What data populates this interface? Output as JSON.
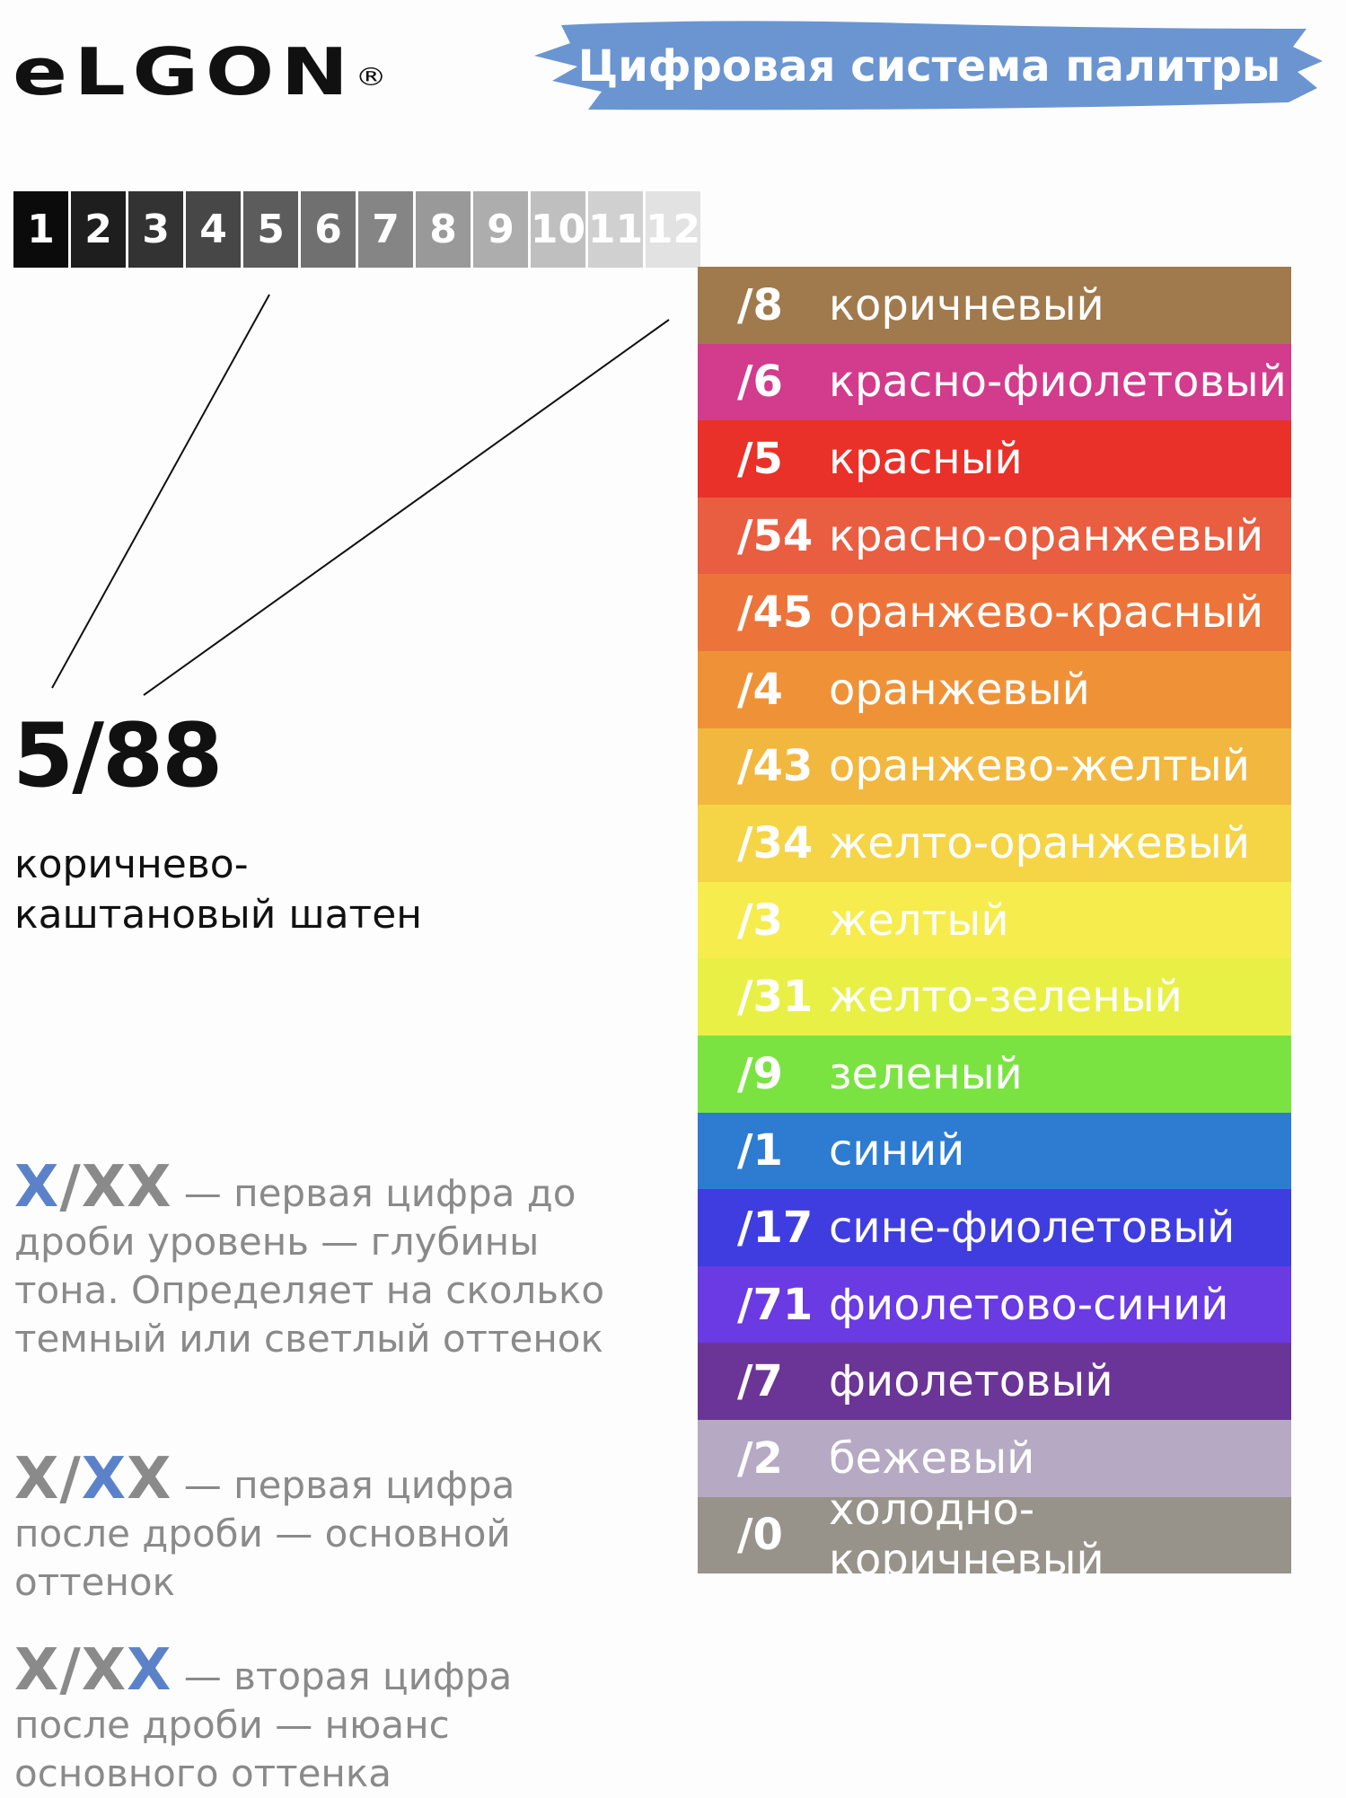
{
  "brand": {
    "name": "eLGON",
    "registered": "®"
  },
  "title": "Цифровая система палитры",
  "colors": {
    "banner": "#6a95d1",
    "accent_blue": "#5b82c9",
    "gray_text": "#8a8a8a"
  },
  "tone_scale": {
    "levels": [
      "1",
      "2",
      "3",
      "4",
      "5",
      "6",
      "7",
      "8",
      "9",
      "10",
      "11",
      "12"
    ],
    "cell_colors": [
      "#0b0b0b",
      "#1e1e1e",
      "#333333",
      "#474747",
      "#5c5c5c",
      "#707070",
      "#858585",
      "#999999",
      "#adadad",
      "#bfbfbf",
      "#d0d0d0",
      "#e2e2e2"
    ]
  },
  "example": {
    "code": "5/88",
    "description_line1": "коричнево-",
    "description_line2": "каштановый шатен"
  },
  "palette": [
    {
      "code": "/8",
      "name": "коричневый",
      "color": "#a07a4c"
    },
    {
      "code": "/6",
      "name": "красно-фиолетовый",
      "color": "#d33b8c"
    },
    {
      "code": "/5",
      "name": "красный",
      "color": "#e93029"
    },
    {
      "code": "/54",
      "name": "красно-оранжевый",
      "color": "#e95d41"
    },
    {
      "code": "/45",
      "name": "оранжево-красный",
      "color": "#ec743a"
    },
    {
      "code": "/4",
      "name": "оранжевый",
      "color": "#ef9237"
    },
    {
      "code": "/43",
      "name": "оранжево-желтый",
      "color": "#f2b73e"
    },
    {
      "code": "/34",
      "name": "желто-оранжевый",
      "color": "#f5d446"
    },
    {
      "code": "/3",
      "name": "желтый",
      "color": "#f6ec4d"
    },
    {
      "code": "/31",
      "name": "желто-зеленый",
      "color": "#e8f045"
    },
    {
      "code": "/9",
      "name": "зеленый",
      "color": "#7be341"
    },
    {
      "code": "/1",
      "name": "синий",
      "color": "#2d7cd2"
    },
    {
      "code": "/17",
      "name": "сине-фиолетовый",
      "color": "#3f3de0"
    },
    {
      "code": "/71",
      "name": "фиолетово-синий",
      "color": "#6a3ae3"
    },
    {
      "code": "/7",
      "name": "фиолетовый",
      "color": "#6b3597"
    },
    {
      "code": "/2",
      "name": "бежевый",
      "color": "#b6a9c3"
    },
    {
      "code": "/0",
      "name": "холодно-коричневый",
      "color": "#97938a"
    }
  ],
  "explanations": [
    {
      "fmt_a": "X",
      "fmt_sep": "/",
      "fmt_b": "XX",
      "fmt_c": "",
      "dash": " — первая цифра",
      "body": "до дроби уровень — глубины тона. Определяет на сколько темный или светлый оттенок"
    },
    {
      "fmt_a": "X",
      "fmt_sep": "/",
      "fmt_b": "X",
      "fmt_c": "X",
      "dash": " — первая цифра",
      "body": "после дроби — основной оттенок"
    },
    {
      "fmt_a": "X",
      "fmt_sep": "/",
      "fmt_b": "X",
      "fmt_c": "X",
      "dash": " — вторая цифра",
      "body": "после дроби — нюанс основного оттенка"
    }
  ]
}
